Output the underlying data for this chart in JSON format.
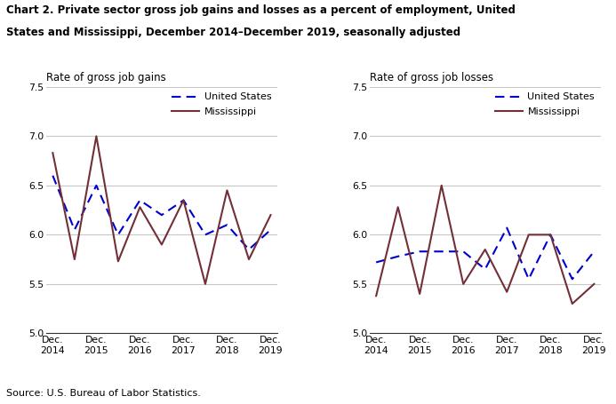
{
  "title_line1": "Chart 2. Private sector gross job gains and losses as a percent of employment, United",
  "title_line2": "States and Mississippi, December 2014–December 2019, seasonally adjusted",
  "source": "Source: U.S. Bureau of Labor Statistics.",
  "left_subtitle": "Rate of gross job gains",
  "right_subtitle": "Rate of gross job losses",
  "x_labels": [
    "Dec.\n2014",
    "Dec.\n2015",
    "Dec.\n2016",
    "Dec.\n2017",
    "Dec.\n2018",
    "Dec.\n2019"
  ],
  "x_tick_pos": [
    0,
    1,
    2,
    3,
    4,
    5
  ],
  "gains_x": [
    0.0,
    0.5,
    1.0,
    1.5,
    2.0,
    2.5,
    3.0,
    3.5,
    4.0,
    4.5,
    5.0
  ],
  "gains_us": [
    6.6,
    6.05,
    6.5,
    6.0,
    6.35,
    6.2,
    6.35,
    6.0,
    6.1,
    5.85,
    6.05
  ],
  "gains_ms": [
    6.83,
    5.75,
    7.0,
    5.73,
    6.28,
    5.9,
    6.35,
    5.5,
    6.45,
    5.75,
    6.2
  ],
  "losses_x": [
    0.0,
    0.5,
    1.0,
    1.5,
    2.0,
    2.5,
    3.0,
    3.5,
    4.0,
    4.5,
    5.0
  ],
  "losses_us": [
    5.72,
    5.78,
    5.83,
    5.83,
    5.83,
    5.65,
    6.07,
    5.55,
    6.0,
    5.55,
    5.83
  ],
  "losses_ms": [
    5.38,
    6.28,
    5.4,
    6.5,
    5.5,
    5.85,
    5.42,
    6.0,
    6.0,
    5.3,
    5.5
  ],
  "us_color": "#0000CC",
  "ms_color": "#722F37",
  "ylim": [
    5.0,
    7.5
  ],
  "yticks": [
    5.0,
    5.5,
    6.0,
    6.5,
    7.0,
    7.5
  ],
  "grid_color": "#c8c8c8",
  "background": "#ffffff",
  "legend_labels": [
    "United States",
    "Mississippi"
  ]
}
